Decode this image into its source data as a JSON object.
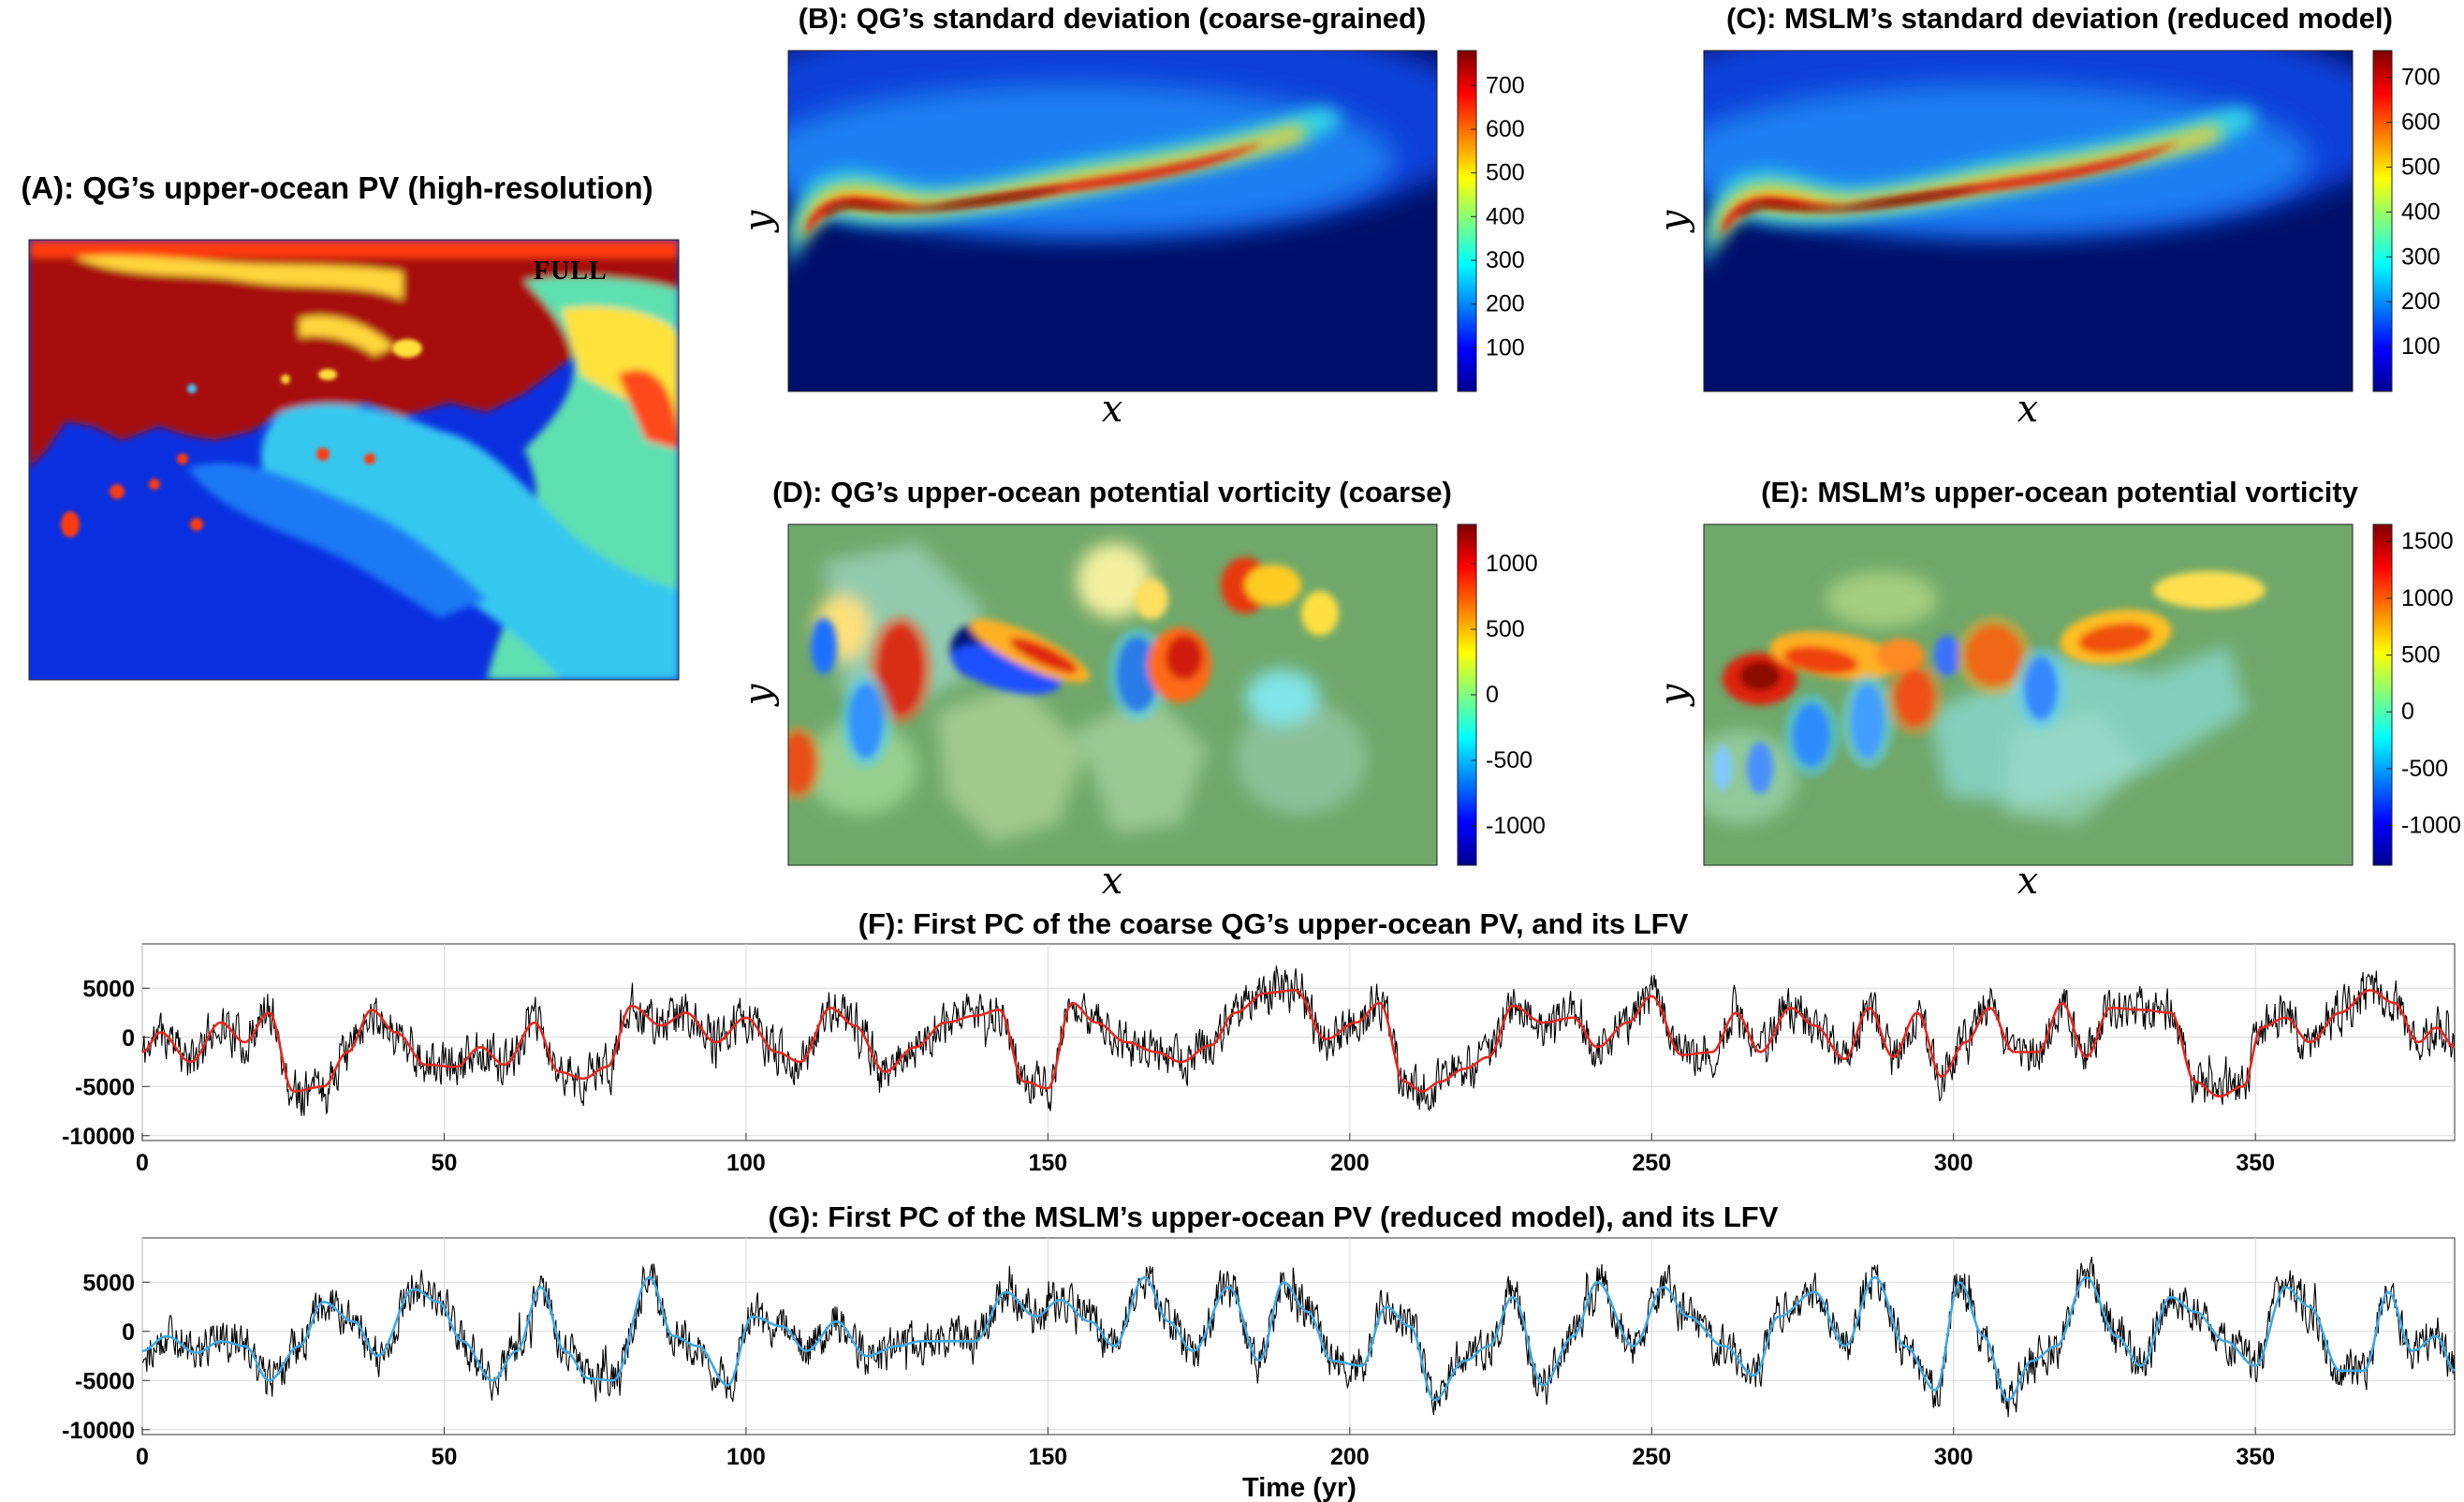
{
  "figure": {
    "panel_a": {
      "title": "(A): QG’s upper-ocean PV (high-resolution)",
      "inset_label": "FULL"
    },
    "panel_b": {
      "title": "(B): QG’s standard deviation (coarse-grained)",
      "xlabel": "x",
      "ylabel": "y"
    },
    "panel_c": {
      "title": "(C): MSLM’s standard deviation (reduced model)",
      "xlabel": "x",
      "ylabel": "y"
    },
    "panel_d": {
      "title": "(D): QG’s upper-ocean potential vorticity (coarse)",
      "xlabel": "x",
      "ylabel": "y"
    },
    "panel_e": {
      "title": "(E): MSLM’s upper-ocean potential vorticity",
      "xlabel": "x",
      "ylabel": "y"
    },
    "colorbar_b": {
      "ticks": [
        "100",
        "200",
        "300",
        "400",
        "500",
        "600",
        "700"
      ]
    },
    "colorbar_c": {
      "ticks": [
        "100",
        "200",
        "300",
        "400",
        "500",
        "600",
        "700"
      ]
    },
    "colorbar_d": {
      "ticks": [
        "-1000",
        "-500",
        "0",
        "500",
        "1000"
      ]
    },
    "colorbar_e": {
      "ticks": [
        "-1000",
        "-500",
        "0",
        "500",
        "1000",
        "1500"
      ]
    },
    "colors": {
      "raw_series": "#000000",
      "lfv_f": "#e8281e",
      "lfv_g": "#3fa9e6",
      "grid": "#d9d9d9"
    }
  },
  "chart_data": [
    {
      "type": "heatmap",
      "id": "A",
      "title": "(A): QG’s upper-ocean PV (high-resolution)"
    },
    {
      "type": "heatmap",
      "id": "B",
      "title": "(B): QG’s standard deviation (coarse-grained)",
      "colorbar_range": [
        0,
        780
      ]
    },
    {
      "type": "heatmap",
      "id": "C",
      "title": "(C): MSLM’s standard deviation (reduced model)",
      "colorbar_range": [
        0,
        760
      ]
    },
    {
      "type": "heatmap",
      "id": "D",
      "title": "(D): QG’s upper-ocean potential vorticity (coarse)",
      "colorbar_range": [
        -1300,
        1300
      ]
    },
    {
      "type": "heatmap",
      "id": "E",
      "title": "(E): MSLM’s upper-ocean potential vorticity",
      "colorbar_range": [
        -1350,
        1650
      ]
    },
    {
      "type": "line",
      "id": "F",
      "title": "(F): First PC of the coarse QG’s upper-ocean PV, and its LFV",
      "xlabel": "",
      "ylabel": "",
      "xlim": [
        0,
        383
      ],
      "ylim": [
        -10500,
        9500
      ],
      "xticks": [
        "0",
        "50",
        "100",
        "150",
        "200",
        "250",
        "300",
        "350"
      ],
      "yticks": [
        "-10000",
        "-5000",
        "0",
        "5000"
      ],
      "series": [
        {
          "name": "PC",
          "color": "#000000",
          "noise_amp": 2300,
          "seed": 11
        },
        {
          "name": "LFV",
          "color": "#e8281e",
          "x": [
            0,
            3,
            8,
            13,
            17,
            21,
            25,
            30,
            34,
            38,
            42,
            47,
            52,
            56,
            60,
            65,
            69,
            73,
            77,
            81,
            86,
            90,
            95,
            100,
            105,
            109,
            114,
            118,
            123,
            128,
            133,
            138,
            142,
            146,
            150,
            154,
            158,
            163,
            168,
            172,
            177,
            181,
            186,
            191,
            196,
            201,
            205,
            209,
            212,
            215,
            219,
            223,
            227,
            232,
            237,
            241,
            246,
            250,
            255,
            260,
            264,
            268,
            273,
            277,
            282,
            286,
            290,
            294,
            298,
            302,
            306,
            310,
            314,
            318,
            322,
            326,
            331,
            336,
            340,
            344,
            348,
            351,
            355,
            359,
            364,
            369,
            373,
            377,
            380,
            383
          ],
          "values": [
            -1500,
            500,
            -2500,
            1500,
            -500,
            2500,
            -5500,
            -5000,
            -1500,
            2800,
            500,
            -2800,
            -3000,
            -1000,
            -2800,
            1500,
            -3500,
            -4200,
            -3000,
            3200,
            1200,
            2500,
            -500,
            2000,
            -1500,
            -2500,
            3000,
            1200,
            -3500,
            -1000,
            1500,
            2200,
            2800,
            -4500,
            -5200,
            3500,
            1500,
            -500,
            -1500,
            -2500,
            -800,
            2500,
            4500,
            4800,
            -200,
            1500,
            3500,
            -4500,
            -5500,
            -4500,
            -3200,
            -2000,
            3200,
            1500,
            2000,
            -1000,
            1500,
            4200,
            -1800,
            -1500,
            2500,
            -1500,
            3000,
            1200,
            -2200,
            3000,
            -2000,
            2500,
            -4000,
            -500,
            3000,
            -1500,
            -1500,
            3500,
            -2000,
            3000,
            2800,
            2500,
            -4500,
            -6000,
            -5000,
            1000,
            2000,
            -500,
            2500,
            4800,
            3500,
            -500,
            1000,
            -1000
          ]
        }
      ]
    },
    {
      "type": "line",
      "id": "G",
      "title": "(G): First PC of the MSLM’s upper-ocean PV (reduced model), and its LFV",
      "xlabel": "Time (yr)",
      "ylabel": "",
      "xlim": [
        0,
        383
      ],
      "ylim": [
        -10500,
        9500
      ],
      "xticks": [
        "0",
        "50",
        "100",
        "150",
        "200",
        "250",
        "300",
        "350"
      ],
      "yticks": [
        "-10000",
        "-5000",
        "0",
        "5000"
      ],
      "series": [
        {
          "name": "PC",
          "color": "#000000",
          "noise_amp": 2200,
          "seed": 29
        },
        {
          "name": "LFV",
          "color": "#3fa9e6",
          "x": [
            0,
            4,
            9,
            13,
            17,
            21,
            26,
            30,
            35,
            39,
            45,
            49,
            53,
            58,
            62,
            66,
            70,
            74,
            78,
            84,
            88,
            92,
            97,
            101,
            106,
            110,
            115,
            120,
            125,
            129,
            134,
            138,
            143,
            148,
            152,
            157,
            161,
            166,
            170,
            174,
            180,
            185,
            189,
            193,
            197,
            202,
            206,
            210,
            214,
            219,
            223,
            227,
            232,
            237,
            241,
            247,
            252,
            256,
            262,
            267,
            271,
            277,
            282,
            287,
            292,
            297,
            301,
            305,
            309,
            313,
            317,
            322,
            327,
            331,
            336,
            340,
            345,
            350,
            355,
            359,
            364,
            368,
            372,
            376,
            380,
            383
          ],
          "values": [
            -2000,
            -500,
            -2200,
            -1000,
            -1500,
            -5000,
            -1500,
            3000,
            1000,
            -2500,
            4300,
            3000,
            -1000,
            -5000,
            -2000,
            4500,
            -2000,
            -4800,
            -5000,
            5500,
            -500,
            -1500,
            -5500,
            1500,
            500,
            -2000,
            1000,
            -2500,
            -1500,
            -1000,
            -1000,
            -1000,
            4000,
            1500,
            3200,
            1000,
            -1500,
            5500,
            1000,
            -2000,
            4500,
            -3000,
            5000,
            2000,
            -3000,
            -3500,
            2500,
            500,
            -7000,
            -3000,
            -1500,
            3500,
            -5500,
            -500,
            5000,
            -1500,
            4500,
            1500,
            -1500,
            -4500,
            1500,
            4000,
            -1500,
            5500,
            -1500,
            -6000,
            5000,
            -500,
            -7000,
            -3000,
            -1500,
            5500,
            -500,
            -3500,
            3500,
            2000,
            -1000,
            -3500,
            4500,
            2500,
            -4000,
            -4000,
            4000,
            -2000,
            -500,
            -4000
          ]
        }
      ]
    }
  ]
}
